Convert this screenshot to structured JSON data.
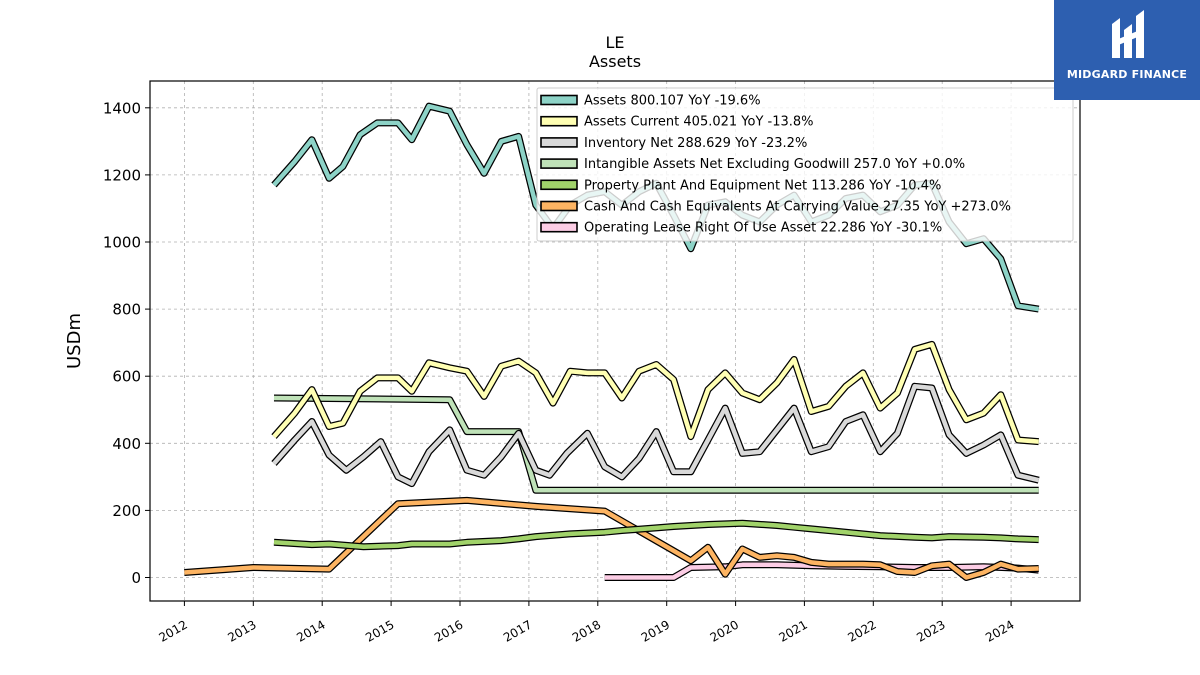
{
  "chart_data": {
    "type": "line",
    "title": "LE",
    "subtitle": "Assets",
    "ylabel": "USDm",
    "xlabel": "",
    "xlim": [
      2011.5,
      2025.0
    ],
    "ylim": [
      -70,
      1480
    ],
    "yticks": [
      0,
      200,
      400,
      600,
      800,
      1000,
      1200,
      1400
    ],
    "xticks": [
      2012,
      2013,
      2014,
      2015,
      2016,
      2017,
      2018,
      2019,
      2020,
      2021,
      2022,
      2023,
      2024
    ],
    "grid": true,
    "legend_position": "top-right",
    "series": [
      {
        "name": "Assets",
        "legend": "Assets  800.107 YoY -19.6%",
        "color": "#8dd3c7",
        "points": [
          [
            2013.3,
            1170
          ],
          [
            2013.6,
            1240
          ],
          [
            2013.85,
            1305
          ],
          [
            2014.1,
            1190
          ],
          [
            2014.3,
            1225
          ],
          [
            2014.55,
            1320
          ],
          [
            2014.8,
            1355
          ],
          [
            2015.1,
            1355
          ],
          [
            2015.3,
            1305
          ],
          [
            2015.55,
            1405
          ],
          [
            2015.85,
            1390
          ],
          [
            2016.1,
            1290
          ],
          [
            2016.35,
            1205
          ],
          [
            2016.6,
            1300
          ],
          [
            2016.85,
            1315
          ],
          [
            2017.1,
            1110
          ],
          [
            2017.35,
            1040
          ],
          [
            2017.6,
            1110
          ],
          [
            2017.85,
            1140
          ],
          [
            2018.1,
            1150
          ],
          [
            2018.35,
            1110
          ],
          [
            2018.6,
            1150
          ],
          [
            2018.85,
            1175
          ],
          [
            2019.1,
            1080
          ],
          [
            2019.35,
            980
          ],
          [
            2019.6,
            1110
          ],
          [
            2019.85,
            1120
          ],
          [
            2020.1,
            1080
          ],
          [
            2020.35,
            1060
          ],
          [
            2020.6,
            1110
          ],
          [
            2020.85,
            1140
          ],
          [
            2021.1,
            1060
          ],
          [
            2021.35,
            1080
          ],
          [
            2021.6,
            1130
          ],
          [
            2021.85,
            1140
          ],
          [
            2022.1,
            1090
          ],
          [
            2022.35,
            1110
          ],
          [
            2022.6,
            1170
          ],
          [
            2022.85,
            1175
          ],
          [
            2023.1,
            1060
          ],
          [
            2023.35,
            995
          ],
          [
            2023.6,
            1010
          ],
          [
            2023.85,
            950
          ],
          [
            2024.1,
            810
          ],
          [
            2024.4,
            800
          ]
        ]
      },
      {
        "name": "Assets Current",
        "legend": "Assets Current  405.021 YoY -13.8%",
        "color": "#ffffb3",
        "points": [
          [
            2013.3,
            420
          ],
          [
            2013.6,
            490
          ],
          [
            2013.85,
            560
          ],
          [
            2014.1,
            450
          ],
          [
            2014.3,
            460
          ],
          [
            2014.55,
            555
          ],
          [
            2014.8,
            595
          ],
          [
            2015.1,
            595
          ],
          [
            2015.3,
            555
          ],
          [
            2015.55,
            640
          ],
          [
            2015.85,
            625
          ],
          [
            2016.1,
            615
          ],
          [
            2016.35,
            540
          ],
          [
            2016.6,
            630
          ],
          [
            2016.85,
            645
          ],
          [
            2017.1,
            610
          ],
          [
            2017.35,
            520
          ],
          [
            2017.6,
            615
          ],
          [
            2017.85,
            610
          ],
          [
            2018.1,
            610
          ],
          [
            2018.35,
            535
          ],
          [
            2018.6,
            615
          ],
          [
            2018.85,
            635
          ],
          [
            2019.1,
            590
          ],
          [
            2019.35,
            420
          ],
          [
            2019.6,
            560
          ],
          [
            2019.85,
            610
          ],
          [
            2020.1,
            550
          ],
          [
            2020.35,
            530
          ],
          [
            2020.6,
            580
          ],
          [
            2020.85,
            650
          ],
          [
            2021.1,
            495
          ],
          [
            2021.35,
            510
          ],
          [
            2021.6,
            570
          ],
          [
            2021.85,
            610
          ],
          [
            2022.1,
            505
          ],
          [
            2022.35,
            550
          ],
          [
            2022.6,
            680
          ],
          [
            2022.85,
            695
          ],
          [
            2023.1,
            560
          ],
          [
            2023.35,
            470
          ],
          [
            2023.6,
            490
          ],
          [
            2023.85,
            545
          ],
          [
            2024.1,
            410
          ],
          [
            2024.4,
            405
          ]
        ]
      },
      {
        "name": "Inventory Net",
        "legend": "Inventory Net  288.629 YoY -23.2%",
        "color": "#d9d9d9",
        "points": [
          [
            2013.3,
            340
          ],
          [
            2013.6,
            410
          ],
          [
            2013.85,
            465
          ],
          [
            2014.1,
            365
          ],
          [
            2014.35,
            320
          ],
          [
            2014.6,
            360
          ],
          [
            2014.85,
            405
          ],
          [
            2015.1,
            300
          ],
          [
            2015.3,
            280
          ],
          [
            2015.55,
            375
          ],
          [
            2015.85,
            440
          ],
          [
            2016.1,
            320
          ],
          [
            2016.35,
            305
          ],
          [
            2016.6,
            360
          ],
          [
            2016.85,
            430
          ],
          [
            2017.1,
            320
          ],
          [
            2017.3,
            305
          ],
          [
            2017.55,
            370
          ],
          [
            2017.85,
            430
          ],
          [
            2018.1,
            330
          ],
          [
            2018.35,
            300
          ],
          [
            2018.6,
            355
          ],
          [
            2018.85,
            435
          ],
          [
            2019.1,
            315
          ],
          [
            2019.35,
            315
          ],
          [
            2019.6,
            410
          ],
          [
            2019.85,
            505
          ],
          [
            2020.1,
            370
          ],
          [
            2020.35,
            375
          ],
          [
            2020.6,
            440
          ],
          [
            2020.85,
            505
          ],
          [
            2021.1,
            375
          ],
          [
            2021.35,
            390
          ],
          [
            2021.6,
            465
          ],
          [
            2021.85,
            485
          ],
          [
            2022.1,
            375
          ],
          [
            2022.35,
            430
          ],
          [
            2022.6,
            570
          ],
          [
            2022.85,
            565
          ],
          [
            2023.1,
            425
          ],
          [
            2023.35,
            370
          ],
          [
            2023.6,
            395
          ],
          [
            2023.85,
            425
          ],
          [
            2024.1,
            305
          ],
          [
            2024.4,
            290
          ]
        ]
      },
      {
        "name": "Intangible Assets Net Excluding Goodwill",
        "legend": "Intangible Assets Net Excluding Goodwill  257.0 YoY +0.0%",
        "color": "#bfe2b8",
        "points": [
          [
            2013.3,
            535
          ],
          [
            2015.85,
            530
          ],
          [
            2016.1,
            435
          ],
          [
            2016.85,
            435
          ],
          [
            2017.1,
            260
          ],
          [
            2024.4,
            260
          ]
        ]
      },
      {
        "name": "Property Plant And Equipment Net",
        "legend": "Property Plant And Equipment Net  113.286 YoY -10.4%",
        "color": "#a1d36a",
        "points": [
          [
            2013.3,
            105
          ],
          [
            2013.85,
            98
          ],
          [
            2014.1,
            100
          ],
          [
            2014.6,
            92
          ],
          [
            2015.1,
            95
          ],
          [
            2015.3,
            100
          ],
          [
            2015.85,
            100
          ],
          [
            2016.1,
            105
          ],
          [
            2016.6,
            110
          ],
          [
            2016.85,
            115
          ],
          [
            2017.1,
            122
          ],
          [
            2017.6,
            130
          ],
          [
            2018.1,
            135
          ],
          [
            2018.35,
            140
          ],
          [
            2018.85,
            148
          ],
          [
            2019.1,
            152
          ],
          [
            2019.6,
            158
          ],
          [
            2020.1,
            162
          ],
          [
            2020.6,
            155
          ],
          [
            2020.85,
            150
          ],
          [
            2021.1,
            145
          ],
          [
            2021.6,
            135
          ],
          [
            2022.1,
            125
          ],
          [
            2022.6,
            120
          ],
          [
            2022.85,
            118
          ],
          [
            2023.1,
            122
          ],
          [
            2023.6,
            120
          ],
          [
            2023.85,
            118
          ],
          [
            2024.1,
            115
          ],
          [
            2024.4,
            113
          ]
        ]
      },
      {
        "name": "Cash And Cash Equivalents At Carrying Value",
        "legend": "Cash And Cash Equivalents At Carrying Value  27.35 YoY +273.0%",
        "color": "#fdb462",
        "points": [
          [
            2012.0,
            15
          ],
          [
            2013.0,
            30
          ],
          [
            2014.1,
            25
          ],
          [
            2015.1,
            220
          ],
          [
            2016.1,
            230
          ],
          [
            2017.1,
            212
          ],
          [
            2018.1,
            198
          ],
          [
            2019.35,
            50
          ],
          [
            2019.6,
            90
          ],
          [
            2019.85,
            10
          ],
          [
            2020.1,
            85
          ],
          [
            2020.35,
            60
          ],
          [
            2020.6,
            65
          ],
          [
            2020.85,
            60
          ],
          [
            2021.1,
            45
          ],
          [
            2021.35,
            40
          ],
          [
            2021.6,
            40
          ],
          [
            2021.85,
            40
          ],
          [
            2022.1,
            38
          ],
          [
            2022.35,
            18
          ],
          [
            2022.6,
            15
          ],
          [
            2022.85,
            35
          ],
          [
            2023.1,
            40
          ],
          [
            2023.35,
            0
          ],
          [
            2023.6,
            15
          ],
          [
            2023.85,
            40
          ],
          [
            2024.1,
            25
          ],
          [
            2024.4,
            27
          ]
        ]
      },
      {
        "name": "Operating Lease Right Of Use Asset",
        "legend": "Operating Lease Right Of Use Asset  22.286 YoY -30.1%",
        "color": "#fccde5",
        "points": [
          [
            2018.1,
            0
          ],
          [
            2019.1,
            0
          ],
          [
            2019.35,
            30
          ],
          [
            2019.85,
            32
          ],
          [
            2020.1,
            38
          ],
          [
            2020.6,
            38
          ],
          [
            2021.1,
            35
          ],
          [
            2021.6,
            33
          ],
          [
            2022.1,
            32
          ],
          [
            2022.6,
            30
          ],
          [
            2023.1,
            30
          ],
          [
            2023.6,
            32
          ],
          [
            2024.1,
            28
          ],
          [
            2024.4,
            22
          ]
        ]
      }
    ]
  },
  "logo": {
    "text": "MIDGARD FINANCE"
  }
}
